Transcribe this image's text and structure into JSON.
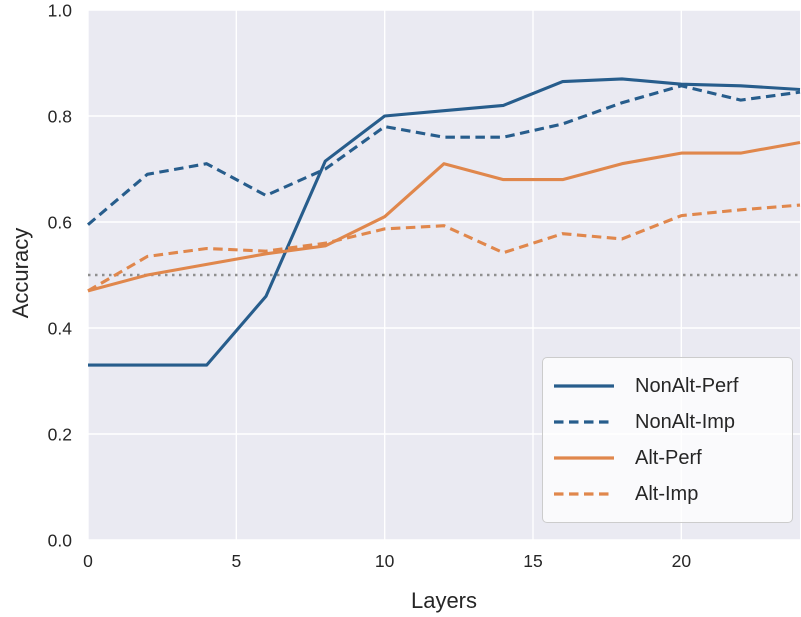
{
  "figure": {
    "background": "#ffffff",
    "plot_background": "#eaeaf2",
    "grid_color": "#ffffff",
    "text_color": "#262626"
  },
  "chart_data": {
    "type": "line",
    "title": "",
    "xlabel": "Layers",
    "ylabel": "Accuracy",
    "xlim": [
      0,
      24
    ],
    "ylim": [
      0.0,
      1.0
    ],
    "grid": true,
    "legend_position": "lower right",
    "x_ticks": [
      {
        "value": 0,
        "label": "0"
      },
      {
        "value": 5,
        "label": "5"
      },
      {
        "value": 10,
        "label": "10"
      },
      {
        "value": 15,
        "label": "15"
      },
      {
        "value": 20,
        "label": "20"
      }
    ],
    "y_ticks": [
      {
        "value": 0.0,
        "label": "0.0"
      },
      {
        "value": 0.2,
        "label": "0.2"
      },
      {
        "value": 0.4,
        "label": "0.4"
      },
      {
        "value": 0.6,
        "label": "0.6"
      },
      {
        "value": 0.8,
        "label": "0.8"
      },
      {
        "value": 1.0,
        "label": "1.0"
      }
    ],
    "x": [
      0,
      2,
      4,
      6,
      8,
      10,
      12,
      14,
      16,
      18,
      20,
      22,
      24
    ],
    "series": [
      {
        "name": "NonAlt-Perf",
        "color": "#275d8c",
        "style": "solid",
        "values": [
          0.33,
          0.33,
          0.33,
          0.46,
          0.715,
          0.8,
          0.81,
          0.82,
          0.865,
          0.87,
          0.86,
          0.857,
          0.85
        ]
      },
      {
        "name": "NonAlt-Imp",
        "color": "#275d8c",
        "style": "dashed",
        "values": [
          0.595,
          0.69,
          0.71,
          0.65,
          0.7,
          0.78,
          0.76,
          0.76,
          0.785,
          0.825,
          0.857,
          0.83,
          0.845
        ]
      },
      {
        "name": "Alt-Perf",
        "color": "#e0874c",
        "style": "solid",
        "values": [
          0.47,
          0.5,
          0.52,
          0.54,
          0.555,
          0.61,
          0.71,
          0.68,
          0.68,
          0.71,
          0.73,
          0.73,
          0.75
        ]
      },
      {
        "name": "Alt-Imp",
        "color": "#e0874c",
        "style": "dashed",
        "values": [
          0.47,
          0.535,
          0.55,
          0.545,
          0.56,
          0.587,
          0.593,
          0.542,
          0.578,
          0.568,
          0.612,
          0.623,
          0.632
        ]
      }
    ],
    "reference_line": {
      "y": 0.5,
      "color": "#8f8f8f",
      "style": "dotted"
    }
  }
}
